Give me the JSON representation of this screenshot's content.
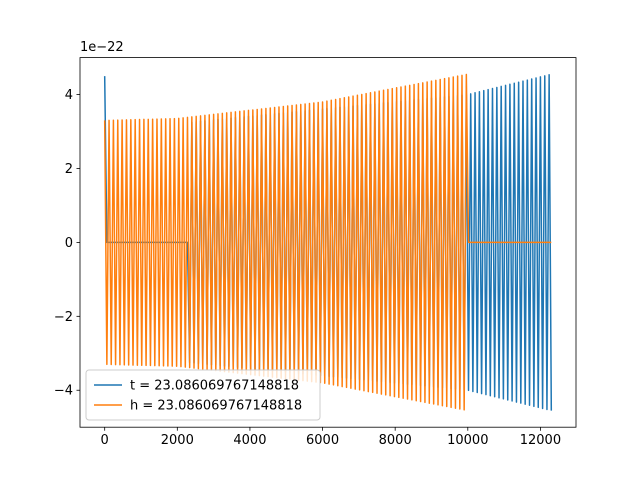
{
  "chart_data": {
    "type": "line",
    "title": "",
    "xlabel": "",
    "ylabel": "",
    "offset_text": "1e−22",
    "xlim": [
      -680,
      12980
    ],
    "ylim": [
      -5e-22,
      5e-22
    ],
    "x_ticks": [
      {
        "value": 0,
        "label": "0"
      },
      {
        "value": 2000,
        "label": "2000"
      },
      {
        "value": 4000,
        "label": "4000"
      },
      {
        "value": 6000,
        "label": "6000"
      },
      {
        "value": 8000,
        "label": "8000"
      },
      {
        "value": 10000,
        "label": "10000"
      },
      {
        "value": 12000,
        "label": "12000"
      }
    ],
    "y_ticks": [
      {
        "value": -4e-22,
        "label": "−4"
      },
      {
        "value": -2e-22,
        "label": "−2"
      },
      {
        "value": 0,
        "label": "0"
      },
      {
        "value": 2e-22,
        "label": "2"
      },
      {
        "value": 4e-22,
        "label": "4"
      }
    ],
    "grid": false,
    "legend_position": "lower-left",
    "series": [
      {
        "name": "t = 23.086069767148818",
        "color": "#1f77b4",
        "description_points": [
          {
            "x": 0,
            "amplitude": 4.5e-22
          },
          {
            "x": 10,
            "amplitude": 0
          },
          {
            "x": 2300,
            "amplitude": 0
          },
          {
            "x": 2320,
            "amplitude": 3.25e-22
          },
          {
            "x": 10000,
            "amplitude": 4e-22
          },
          {
            "x": 12300,
            "amplitude": 4.55e-22
          }
        ],
        "x_start": 0,
        "x_end": 12300
      },
      {
        "name": "h = 23.086069767148818",
        "color": "#ff7f0e",
        "description_points": [
          {
            "x": 0,
            "amplitude": 3.3e-22
          },
          {
            "x": 2000,
            "amplitude": 3.35e-22
          },
          {
            "x": 6000,
            "amplitude": 3.8e-22
          },
          {
            "x": 10000,
            "amplitude": 4.55e-22
          },
          {
            "x": 10010,
            "amplitude": 0
          },
          {
            "x": 12300,
            "amplitude": 0
          }
        ],
        "x_start": 0,
        "x_end": 12300
      }
    ]
  }
}
